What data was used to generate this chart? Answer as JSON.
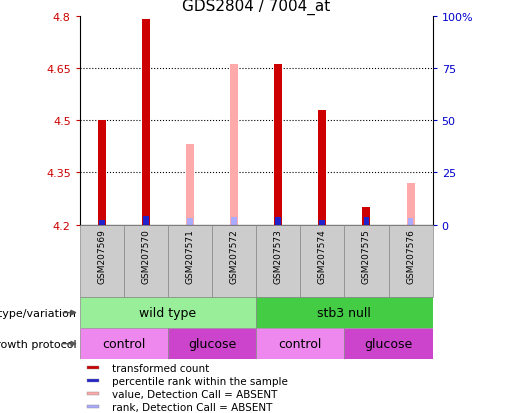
{
  "title": "GDS2804 / 7004_at",
  "samples": [
    "GSM207569",
    "GSM207570",
    "GSM207571",
    "GSM207572",
    "GSM207573",
    "GSM207574",
    "GSM207575",
    "GSM207576"
  ],
  "ylim": [
    4.2,
    4.8
  ],
  "yticks": [
    4.2,
    4.35,
    4.5,
    4.65,
    4.8
  ],
  "ytick_labels": [
    "4.2",
    "4.35",
    "4.5",
    "4.65",
    "4.8"
  ],
  "y2ticks": [
    0,
    25,
    50,
    75,
    100
  ],
  "y2tick_labels": [
    "0",
    "25",
    "50",
    "75",
    "100%"
  ],
  "bar_bottom": 4.2,
  "red_values": [
    4.5,
    4.79,
    null,
    null,
    4.66,
    4.53,
    4.25,
    null
  ],
  "pink_values": [
    null,
    null,
    4.43,
    4.66,
    null,
    null,
    null,
    4.32
  ],
  "blue_values": [
    4.214,
    4.224,
    null,
    null,
    4.222,
    4.214,
    4.223,
    null
  ],
  "lblue_values": [
    null,
    null,
    4.218,
    4.222,
    null,
    null,
    null,
    4.218
  ],
  "red_color": "#cc0000",
  "pink_color": "#ffaaaa",
  "blue_color": "#2222cc",
  "lblue_color": "#aaaaff",
  "cell_bg": "#cccccc",
  "genotype_groups": [
    {
      "label": "wild type",
      "start": 0,
      "end": 4,
      "color": "#99ee99"
    },
    {
      "label": "stb3 null",
      "start": 4,
      "end": 8,
      "color": "#44cc44"
    }
  ],
  "protocol_groups": [
    {
      "label": "control",
      "start": 0,
      "end": 2,
      "color": "#ee88ee"
    },
    {
      "label": "glucose",
      "start": 2,
      "end": 4,
      "color": "#cc44cc"
    },
    {
      "label": "control",
      "start": 4,
      "end": 6,
      "color": "#ee88ee"
    },
    {
      "label": "glucose",
      "start": 6,
      "end": 8,
      "color": "#cc44cc"
    }
  ],
  "legend_items": [
    {
      "label": "transformed count",
      "color": "#cc0000"
    },
    {
      "label": "percentile rank within the sample",
      "color": "#2222cc"
    },
    {
      "label": "value, Detection Call = ABSENT",
      "color": "#ffaaaa"
    },
    {
      "label": "rank, Detection Call = ABSENT",
      "color": "#aaaaff"
    }
  ],
  "ylabel_color": "#cc0000",
  "y2label_color": "#0000cc",
  "title_fontsize": 11,
  "tick_fontsize": 8,
  "annot_fontsize": 7.5,
  "sample_fontsize": 6.5,
  "legend_fontsize": 7.5
}
